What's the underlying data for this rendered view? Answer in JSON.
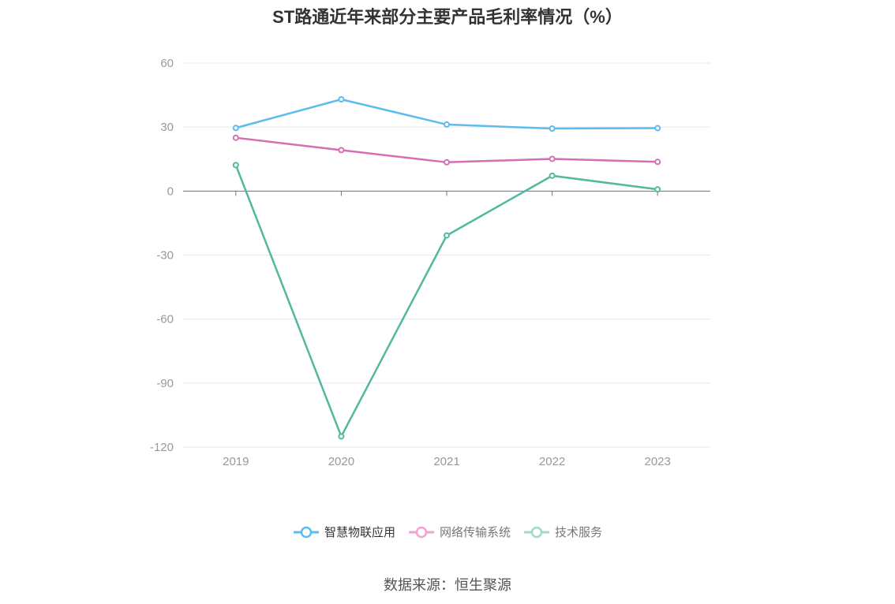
{
  "chart_data": {
    "type": "line",
    "title": "ST路通近年来部分主要产品毛利率情况（%）",
    "categories": [
      "2019",
      "2020",
      "2021",
      "2022",
      "2023"
    ],
    "ylim": [
      -120,
      60
    ],
    "yticks": [
      "60",
      "30",
      "0",
      "-30",
      "-60",
      "-90",
      "-120"
    ],
    "grid": true,
    "legend_position": "bottom",
    "series": [
      {
        "name": "智慧物联应用",
        "color": "#5bbcf0",
        "values": [
          29.6,
          43.0,
          31.2,
          29.3,
          29.5
        ]
      },
      {
        "name": "网络传输系统",
        "color": "#d56fb2",
        "values": [
          25.0,
          19.2,
          13.5,
          15.1,
          13.7
        ]
      },
      {
        "name": "技术服务",
        "color": "#52b8a0",
        "values": [
          12.2,
          -115.0,
          -20.8,
          7.2,
          0.8
        ]
      }
    ],
    "source": "数据来源：恒生聚源"
  },
  "legend_colors": {
    "s0": "#5bbcf0",
    "s1": "#f2a3cf",
    "s2": "#9bdccc"
  }
}
